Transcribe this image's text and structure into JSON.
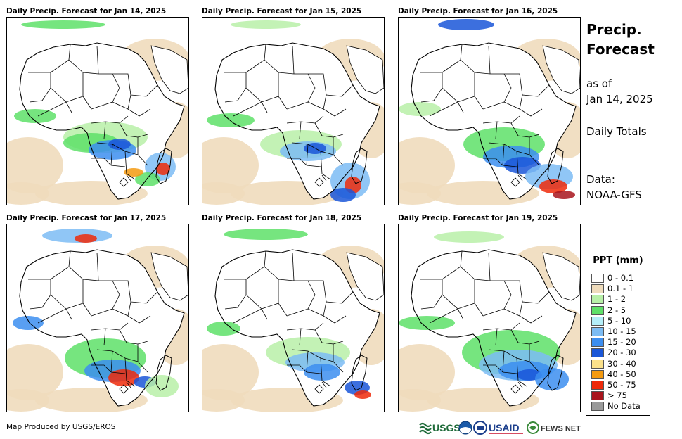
{
  "panels": [
    {
      "title": "Daily Precip. Forecast for Jan 14, 2025",
      "day": 0
    },
    {
      "title": "Daily Precip. Forecast for Jan 15, 2025",
      "day": 1
    },
    {
      "title": "Daily Precip. Forecast for Jan 16, 2025",
      "day": 2
    },
    {
      "title": "Daily Precip. Forecast for Jan 17, 2025",
      "day": 3
    },
    {
      "title": "Daily Precip. Forecast for Jan 18, 2025",
      "day": 4
    },
    {
      "title": "Daily Precip. Forecast for Jan 19, 2025",
      "day": 5
    }
  ],
  "sidebar": {
    "title_line1": "Precip.",
    "title_line2": "Forecast",
    "asof_line1": "as of",
    "asof_line2": "Jan 14, 2025",
    "totals": "Daily Totals",
    "data_line1": "Data:",
    "data_line2": "NOAA-GFS"
  },
  "legend": {
    "title": "PPT (mm)",
    "items": [
      {
        "label": "0 - 0.1",
        "color": "#ffffff"
      },
      {
        "label": "0.1 - 1",
        "color": "#efdcbc"
      },
      {
        "label": "1 - 2",
        "color": "#b8f0a8"
      },
      {
        "label": "2 - 5",
        "color": "#5ee068"
      },
      {
        "label": "5 - 10",
        "color": "#b4eef8"
      },
      {
        "label": "10 - 15",
        "color": "#7cbcf4"
      },
      {
        "label": "15 - 20",
        "color": "#3c8ef0"
      },
      {
        "label": "20 - 30",
        "color": "#1a56d8"
      },
      {
        "label": "30 - 40",
        "color": "#fbe18a"
      },
      {
        "label": "40 - 50",
        "color": "#f49a10"
      },
      {
        "label": "50 - 75",
        "color": "#ee2a0a"
      },
      {
        "label": "> 75",
        "color": "#a8141c"
      },
      {
        "label": "No Data",
        "color": "#9a9a9a"
      }
    ]
  },
  "footer": {
    "credit": "Map Produced by USGS/EROS"
  },
  "logos": {
    "usgs": "USGS",
    "usaid": "USAID",
    "fewsnet": "FEWS NET"
  }
}
